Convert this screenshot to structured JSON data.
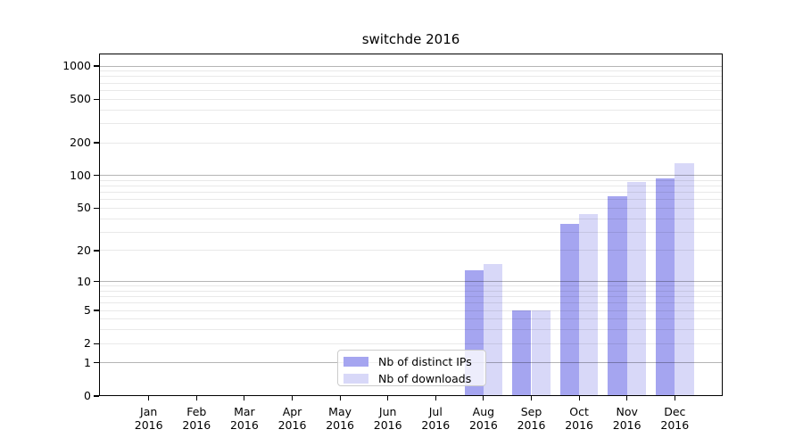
{
  "title": "switchde 2016",
  "chart_data": {
    "type": "bar",
    "title": "switchde 2016",
    "categories": [
      "Jan",
      "Feb",
      "Mar",
      "Apr",
      "May",
      "Jun",
      "Jul",
      "Aug",
      "Sep",
      "Oct",
      "Nov",
      "Dec"
    ],
    "x_tick_second_line": "2016",
    "series": [
      {
        "name": "Nb of distinct IPs",
        "color": "#a5a5f0",
        "values": [
          0,
          0,
          0,
          0,
          0,
          0,
          0,
          13,
          5,
          36,
          64,
          95
        ]
      },
      {
        "name": "Nb of downloads",
        "color": "#d8d8f8",
        "values": [
          0,
          0,
          0,
          0,
          0,
          0,
          0,
          15,
          5,
          44,
          87,
          129
        ]
      }
    ],
    "y_ticks": [
      0,
      1,
      2,
      5,
      10,
      20,
      50,
      100,
      200,
      500,
      1000
    ],
    "y_scale": "log10(value+1)",
    "ylim": [
      0,
      1300
    ],
    "xlabel": "",
    "ylabel": "",
    "grid": true,
    "legend_position": "lower center"
  },
  "colors": {
    "background": "#ffffff",
    "axis": "#000000",
    "major_grid": "#b5b5b5",
    "minor_grid": "#e9e9e9",
    "legend_border": "#cccccc"
  }
}
